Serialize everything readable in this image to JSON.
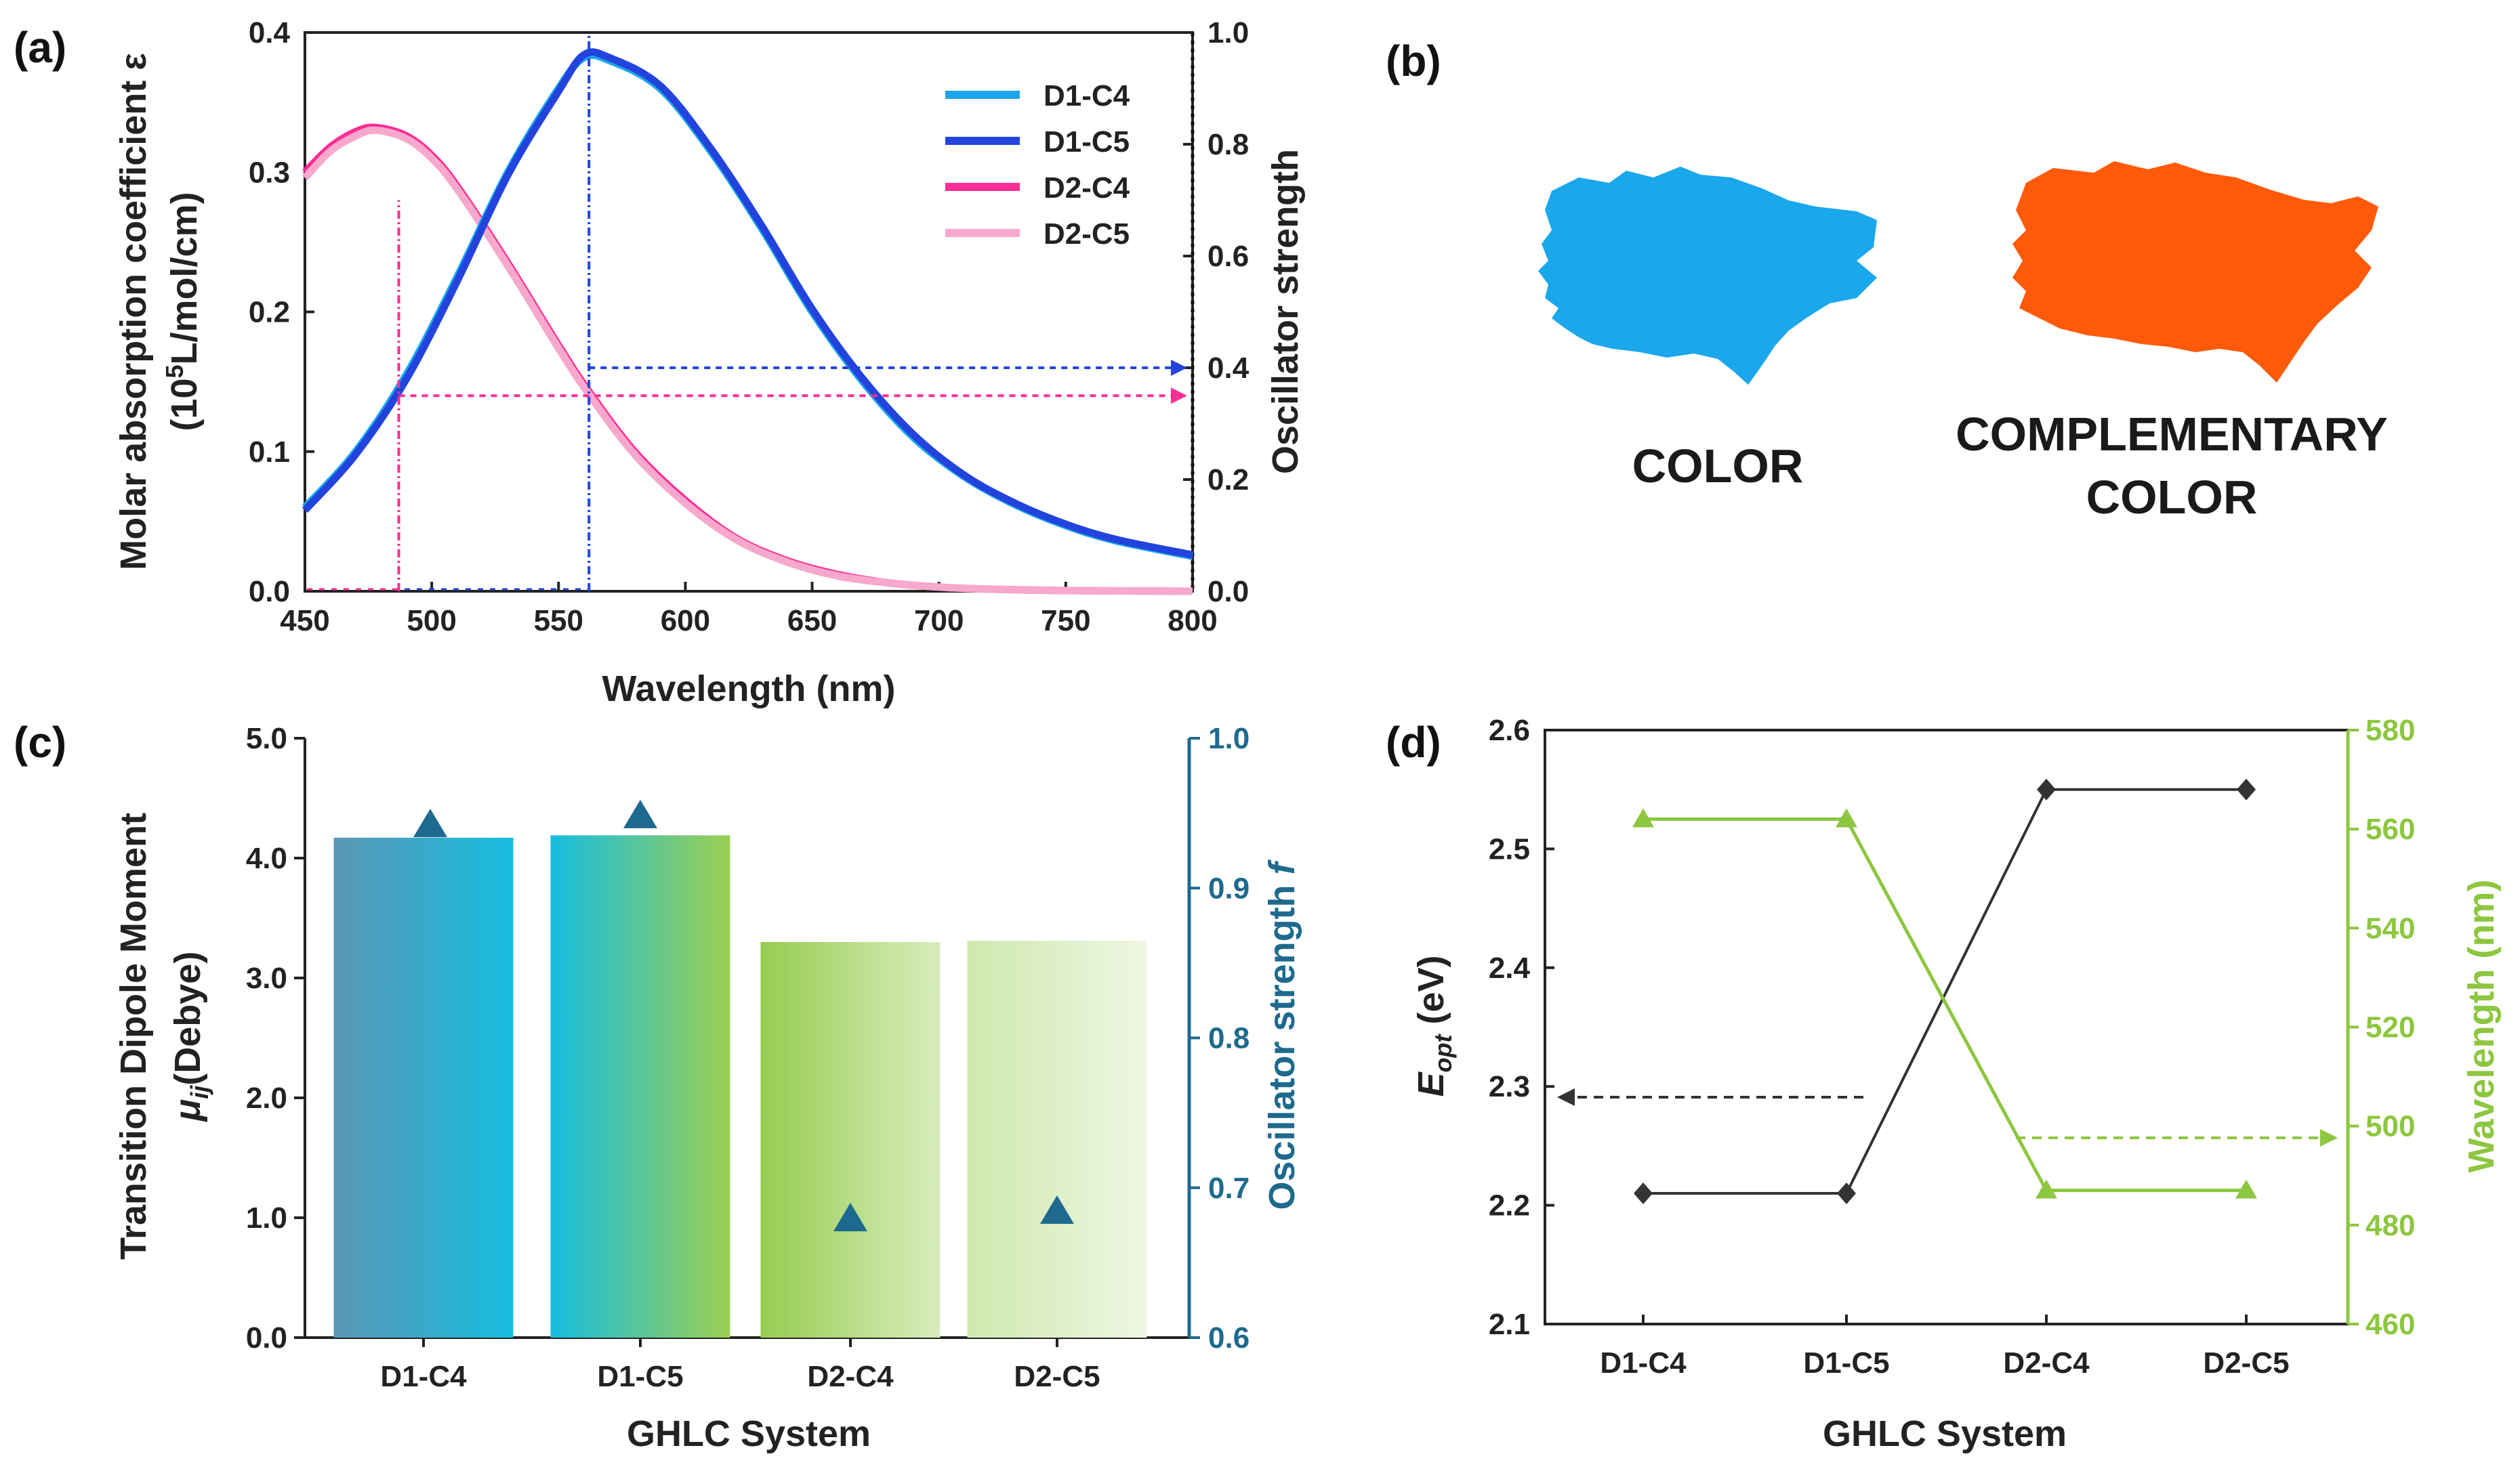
{
  "panels": {
    "a": {
      "label": "(a)"
    },
    "b": {
      "label": "(b)"
    },
    "c": {
      "label": "(c)"
    },
    "d": {
      "label": "(d)"
    }
  },
  "color_panel": {
    "color_label": "COLOR",
    "complementary_line1": "COMPLEMENTARY",
    "complementary_line2": "COLOR",
    "color_hex": "#1aa7ec",
    "complementary_hex": "#ff5a0a"
  },
  "chart_data": [
    {
      "id": "a",
      "type": "line",
      "xlabel": "Wavelength (nm)",
      "ylabel_line1": "Molar absorption coefficient ε",
      "ylabel_line2_pre": "(10",
      "ylabel_line2_sup": "5",
      "ylabel_line2_post": "L/mol/cm)",
      "y2label": "Oscillator strength",
      "xlim": [
        450,
        800
      ],
      "ylim": [
        0,
        0.4
      ],
      "y2lim": [
        0,
        1.0
      ],
      "xticks": [
        450,
        500,
        550,
        600,
        650,
        700,
        750,
        800
      ],
      "yticks": [
        0.0,
        0.1,
        0.2,
        0.3,
        0.4
      ],
      "y2ticks": [
        0.0,
        0.2,
        0.4,
        0.6,
        0.8,
        1.0
      ],
      "legend_position": "top-right",
      "series": [
        {
          "name": "D1-C4",
          "color": "#1aa7ec",
          "x": [
            450,
            470,
            490,
            510,
            530,
            550,
            560,
            570,
            590,
            610,
            630,
            650,
            670,
            690,
            710,
            730,
            750,
            770,
            800
          ],
          "y": [
            0.06,
            0.1,
            0.155,
            0.225,
            0.3,
            0.36,
            0.382,
            0.38,
            0.36,
            0.315,
            0.26,
            0.2,
            0.15,
            0.11,
            0.082,
            0.062,
            0.047,
            0.036,
            0.025
          ]
        },
        {
          "name": "D1-C5",
          "color": "#2244dd",
          "x": [
            450,
            470,
            490,
            510,
            530,
            550,
            560,
            570,
            590,
            610,
            630,
            650,
            670,
            690,
            710,
            730,
            750,
            770,
            800
          ],
          "y": [
            0.058,
            0.098,
            0.152,
            0.222,
            0.298,
            0.358,
            0.384,
            0.382,
            0.362,
            0.317,
            0.262,
            0.202,
            0.152,
            0.112,
            0.083,
            0.063,
            0.048,
            0.037,
            0.026
          ]
        },
        {
          "name": "D2-C4",
          "color": "#ff2d95",
          "x": [
            450,
            460,
            470,
            478,
            490,
            500,
            510,
            530,
            550,
            562,
            580,
            600,
            620,
            640,
            660,
            680,
            700,
            720,
            750,
            800
          ],
          "y": [
            0.3,
            0.318,
            0.329,
            0.332,
            0.326,
            0.312,
            0.29,
            0.235,
            0.176,
            0.143,
            0.1,
            0.065,
            0.038,
            0.022,
            0.012,
            0.006,
            0.003,
            0.0015,
            0.0005,
            0.0
          ]
        },
        {
          "name": "D2-C5",
          "color": "#f7a8cc",
          "x": [
            450,
            460,
            470,
            478,
            490,
            500,
            510,
            530,
            550,
            562,
            580,
            600,
            620,
            640,
            660,
            680,
            700,
            720,
            750,
            800
          ],
          "y": [
            0.296,
            0.315,
            0.326,
            0.33,
            0.324,
            0.31,
            0.288,
            0.233,
            0.174,
            0.141,
            0.098,
            0.063,
            0.037,
            0.021,
            0.011,
            0.006,
            0.003,
            0.0015,
            0.0005,
            0.0
          ]
        }
      ],
      "oscillator_lines": [
        {
          "name": "D1",
          "x": 562,
          "f": 0.4,
          "color": "#2244dd"
        },
        {
          "name": "D2",
          "x": 487,
          "f": 0.35,
          "color": "#ff2d95"
        }
      ]
    },
    {
      "id": "c",
      "type": "bar",
      "xlabel": "GHLC System",
      "ylabel_line1": "Transition Dipole Moment",
      "ylabel_line2_mu": "μ",
      "ylabel_line2_sub": "ij",
      "ylabel_line2_post": "(Debye)",
      "y2label": "Oscillator strength",
      "y2label_italic": "f",
      "categories": [
        "D1-C4",
        "D1-C5",
        "D2-C4",
        "D2-C5"
      ],
      "ylim": [
        0,
        5.0
      ],
      "yticks": [
        0.0,
        1.0,
        2.0,
        3.0,
        4.0,
        5.0
      ],
      "y2lim": [
        0.6,
        1.0
      ],
      "y2ticks": [
        0.6,
        0.7,
        0.8,
        0.9,
        1.0
      ],
      "series": [
        {
          "name": "Transition Dipole Moment",
          "values": [
            4.17,
            4.19,
            3.3,
            3.31
          ]
        },
        {
          "name": "Oscillator strength f",
          "marker": "triangle",
          "color": "#1e6a8e",
          "values": [
            0.943,
            0.949,
            0.68,
            0.685
          ]
        }
      ]
    },
    {
      "id": "d",
      "type": "line",
      "xlabel": "GHLC System",
      "ylabel_pre": "E",
      "ylabel_sub": "opt",
      "ylabel_post": " (eV)",
      "y2label": "Wavelength (nm)",
      "categories": [
        "D1-C4",
        "D1-C5",
        "D2-C4",
        "D2-C5"
      ],
      "ylim": [
        2.1,
        2.6
      ],
      "yticks": [
        2.1,
        2.2,
        2.3,
        2.4,
        2.5,
        2.6
      ],
      "y2lim": [
        460,
        580
      ],
      "y2ticks": [
        460,
        480,
        500,
        520,
        540,
        560,
        580
      ],
      "series": [
        {
          "name": "Eopt (eV)",
          "axis": "left",
          "color": "#333333",
          "marker": "diamond",
          "values": [
            2.21,
            2.21,
            2.55,
            2.55
          ]
        },
        {
          "name": "Wavelength (nm)",
          "axis": "right",
          "color": "#8dc63f",
          "marker": "triangle",
          "values": [
            562,
            562,
            487,
            487
          ]
        }
      ]
    }
  ]
}
